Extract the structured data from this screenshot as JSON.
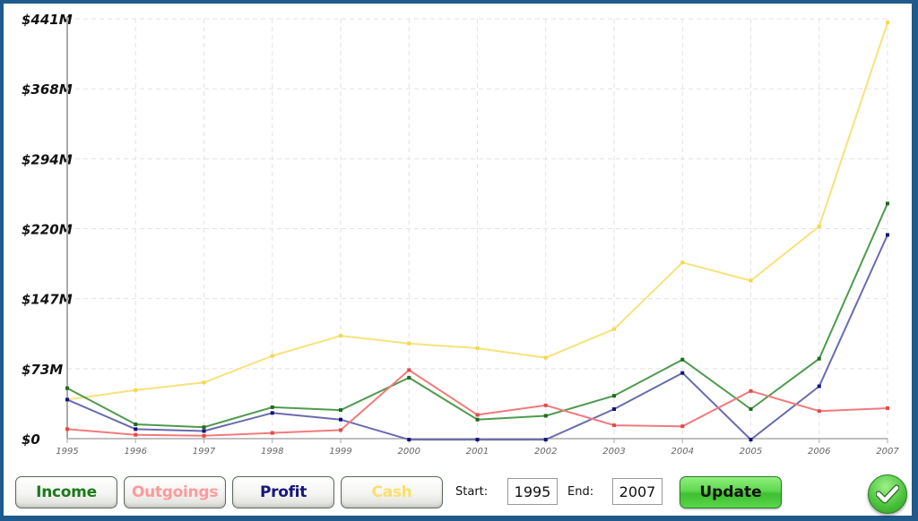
{
  "chart_data": {
    "type": "line",
    "title": "",
    "xlabel": "",
    "ylabel": "",
    "x": [
      1995,
      1996,
      1997,
      1998,
      1999,
      2000,
      2001,
      2002,
      2003,
      2004,
      2005,
      2006,
      2007
    ],
    "ylim": [
      0,
      441
    ],
    "y_ticks": [
      "$0",
      "$73M",
      "$147M",
      "$220M",
      "$294M",
      "$368M",
      "$441M"
    ],
    "y_tick_values": [
      0,
      73.5,
      147,
      220.5,
      294,
      367.5,
      441
    ],
    "grid": true,
    "legend": "none (series toggle buttons below chart)",
    "series": [
      {
        "name": "Cash",
        "color": "#f7e27a",
        "values": [
          41,
          51,
          59,
          87,
          108,
          100,
          95,
          85,
          115,
          185,
          166,
          223,
          437
        ]
      },
      {
        "name": "Income",
        "color": "#4e9a4e",
        "values": [
          53,
          15,
          12,
          33,
          30,
          64,
          20,
          24,
          45,
          83,
          31,
          84,
          247
        ]
      },
      {
        "name": "Profit",
        "color": "#6a6ab0",
        "values": [
          41,
          10,
          8,
          27,
          20,
          -1,
          -1,
          -1,
          31,
          69,
          -1,
          55,
          214
        ]
      },
      {
        "name": "Outgoings",
        "color": "#f27a7a",
        "values": [
          10,
          4,
          3,
          6,
          9,
          72,
          25,
          35,
          14,
          13,
          50,
          29,
          32
        ]
      }
    ],
    "marker_colors": {
      "Cash": "#f2d84a",
      "Income": "#1f6b1f",
      "Profit": "#12127a",
      "Outgoings": "#e84848"
    }
  },
  "controls": {
    "buttons": [
      {
        "label": "Income",
        "color": "#1a7a1a"
      },
      {
        "label": "Outgoings",
        "color": "#ff9a9a"
      },
      {
        "label": "Profit",
        "color": "#151580"
      },
      {
        "label": "Cash",
        "color": "#fde06a"
      }
    ],
    "start_label": "Start:",
    "start_value": "1995",
    "end_label": "End:",
    "end_value": "2007",
    "update_label": "Update",
    "ok_icon": "checkmark-icon"
  }
}
